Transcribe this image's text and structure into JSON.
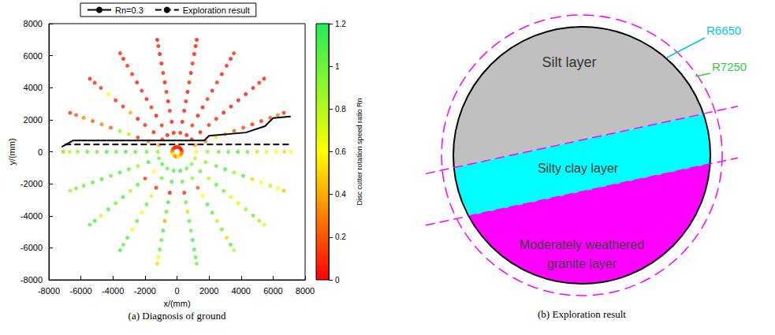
{
  "chart_data": {
    "type": "scatter",
    "caption": "(a) Diagnosis of ground",
    "x_label": "x/(mm)",
    "y_label": "y/(mm)",
    "xlim": [
      -8000,
      8000
    ],
    "xticks": [
      -8000,
      -6000,
      -4000,
      -2000,
      0,
      2000,
      4000,
      6000,
      8000
    ],
    "ylim": [
      -8000,
      8000
    ],
    "yticks": [
      -8000,
      -6000,
      -4000,
      -2000,
      0,
      2000,
      4000,
      6000,
      8000
    ],
    "grid": false,
    "legend": "top",
    "angles": [
      0,
      20,
      40,
      60,
      80,
      100,
      120,
      140,
      160,
      180,
      200,
      220,
      240,
      260,
      280,
      300,
      320,
      340
    ],
    "rings": [
      {
        "radius": 300,
        "rn": [
          0.2,
          0.1,
          0.05,
          0.05,
          0.1,
          0.1,
          0.05,
          0.1,
          0.2,
          0.3,
          0.5,
          0.6,
          0.4,
          0.3,
          0.5,
          0.6,
          0.4,
          0.3
        ]
      },
      {
        "radius": 1200,
        "rn": [
          0.6,
          0.4,
          0.05,
          0.05,
          0.1,
          0.05,
          0.05,
          0.1,
          0.4,
          0.9,
          1.0,
          1.1,
          1.0,
          1.05,
          1.1,
          1.0,
          0.95,
          0.8
        ]
      },
      {
        "radius": 1900,
        "rn": [
          0.9,
          0.3,
          0.05,
          0.1,
          0.05,
          0.05,
          0.1,
          0.05,
          0.3,
          1.0,
          1.1,
          0.6,
          1.0,
          1.1,
          1.05,
          0.9,
          1.0,
          0.95
        ]
      },
      {
        "radius": 2600,
        "rn": [
          1.0,
          0.7,
          0.1,
          0.05,
          0.05,
          0.1,
          0.05,
          0.1,
          0.1,
          1.05,
          0.9,
          0.15,
          0.1,
          0.05,
          0.1,
          0.2,
          0.8,
          1.0
        ]
      },
      {
        "radius": 3200,
        "rn": [
          1.0,
          0.4,
          0.1,
          0.05,
          0.1,
          0.05,
          0.1,
          0.05,
          0.5,
          1.1,
          1.0,
          1.05,
          0.7,
          1.1,
          1.0,
          0.6,
          1.05,
          1.1
        ]
      },
      {
        "radius": 3800,
        "rn": [
          1.1,
          0.2,
          0.05,
          0.1,
          0.05,
          0.1,
          0.05,
          0.4,
          0.9,
          1.0,
          1.1,
          0.8,
          1.05,
          1.0,
          0.5,
          1.1,
          1.0,
          0.9
        ]
      },
      {
        "radius": 4400,
        "rn": [
          1.0,
          0.15,
          0.05,
          0.05,
          0.1,
          0.05,
          0.1,
          0.1,
          0.2,
          1.1,
          1.0,
          1.1,
          0.6,
          0.4,
          1.0,
          1.05,
          0.7,
          1.1
        ]
      },
      {
        "radius": 5000,
        "rn": [
          0.5,
          0.1,
          0.05,
          0.1,
          0.05,
          0.1,
          0.05,
          0.1,
          0.3,
          1.0,
          1.1,
          1.0,
          1.05,
          1.1,
          1.0,
          0.8,
          0.55,
          0.5
        ]
      },
      {
        "radius": 5600,
        "rn": [
          0.7,
          0.1,
          0.05,
          0.05,
          0.1,
          0.05,
          0.1,
          0.6,
          0.2,
          1.0,
          1.05,
          1.1,
          0.6,
          1.0,
          1.1,
          1.0,
          0.9,
          0.6
        ]
      },
      {
        "radius": 6200,
        "rn": [
          0.6,
          0.2,
          0.05,
          0.1,
          0.05,
          0.05,
          0.1,
          0.1,
          0.3,
          0.9,
          1.0,
          0.7,
          1.1,
          1.0,
          1.05,
          0.5,
          1.0,
          0.8
        ]
      },
      {
        "radius": 6700,
        "rn": [
          0.5,
          0.3,
          0.1,
          0.05,
          0.05,
          0.1,
          0.05,
          0.1,
          0.2,
          0.8,
          1.0,
          1.1,
          1.0,
          0.6,
          1.0,
          1.1,
          0.9,
          0.6
        ]
      },
      {
        "radius": 7100,
        "rn": [
          0.6,
          0.1,
          0.05,
          0.1,
          0.05,
          0.05,
          0.1,
          0.05,
          0.1,
          0.4,
          0.9,
          1.0,
          1.1,
          0.5,
          1.0,
          0.8,
          0.7,
          0.45
        ]
      }
    ],
    "colorbar": {
      "label": "Disc cutter rotation speed ratio Rn",
      "range": [
        0,
        1.2
      ],
      "ticks": [
        0,
        0.2,
        0.4,
        0.6,
        0.8,
        1,
        1.2
      ],
      "colors": [
        "#ff0000",
        "#ffff00",
        "#22ee55"
      ]
    },
    "series": [
      {
        "name": "Rn=0.3",
        "type": "line",
        "color": "#000000",
        "line_style": "solid",
        "x": [
          -7200,
          -6500,
          1700,
          2000,
          4300,
          5500,
          6000,
          7100
        ],
        "y": [
          300,
          700,
          700,
          1000,
          1200,
          1600,
          2100,
          2200
        ]
      },
      {
        "name": "Exploration result",
        "type": "line",
        "color": "#000000",
        "line_style": "dashed",
        "x": [
          -7000,
          7000
        ],
        "y": [
          450,
          450
        ]
      }
    ]
  },
  "diagram": {
    "caption": "(b) Exploration result",
    "layers": [
      {
        "label": "Silt layer",
        "color": "#c0c0c0"
      },
      {
        "label": "Silty clay layer",
        "color": "#00ffff"
      },
      {
        "label": "Moderately weathered granite layer",
        "color": "#ff00ff"
      }
    ],
    "radii": [
      {
        "label": "R6650",
        "color": "#00c8e0"
      },
      {
        "label": "R7250",
        "color": "#33cc44"
      }
    ]
  }
}
